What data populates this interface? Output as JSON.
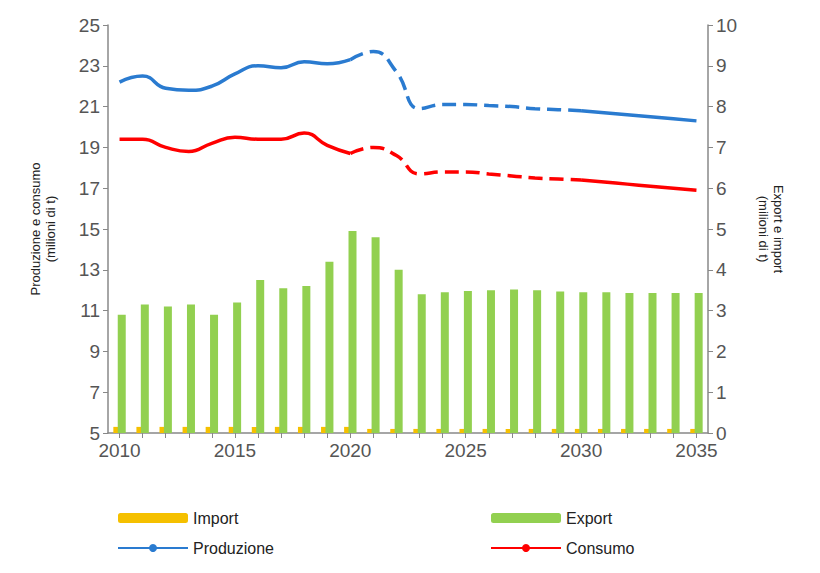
{
  "chart_data": {
    "type": "bar",
    "y_label": "Produzione e consumo\n(milioni di t)",
    "y2_label": "Export e import\n(milioni di t)",
    "categories": [
      2010,
      null,
      null,
      null,
      null,
      2015,
      null,
      null,
      null,
      null,
      2020,
      null,
      null,
      null,
      null,
      2025,
      null,
      null,
      null,
      null,
      2030,
      null,
      null,
      null,
      null,
      2035
    ],
    "ylim": [
      5,
      25
    ],
    "yticks": [
      5,
      7,
      9,
      11,
      13,
      15,
      17,
      19,
      21,
      23,
      25
    ],
    "y2lim": [
      0,
      10
    ],
    "y2ticks": [
      0,
      1,
      2,
      3,
      4,
      5,
      6,
      7,
      8,
      9,
      10
    ],
    "grid": false,
    "legend": "bottom",
    "series": [
      {
        "name": "Import",
        "type": "bar",
        "axis": "y2",
        "color": "#f5c000",
        "values": [
          0.15,
          0.15,
          0.15,
          0.15,
          0.15,
          0.15,
          0.15,
          0.15,
          0.15,
          0.15,
          0.15,
          0.1,
          0.1,
          0.1,
          0.1,
          0.1,
          0.1,
          0.1,
          0.1,
          0.1,
          0.1,
          0.1,
          0.1,
          0.1,
          0.1,
          0.1
        ]
      },
      {
        "name": "Export",
        "type": "bar",
        "axis": "y2",
        "color": "#92d050",
        "values": [
          2.9,
          3.15,
          3.1,
          3.15,
          2.9,
          3.2,
          3.75,
          3.55,
          3.6,
          4.2,
          4.95,
          4.8,
          4.0,
          3.4,
          3.45,
          3.48,
          3.5,
          3.52,
          3.5,
          3.47,
          3.45,
          3.45,
          3.43,
          3.43,
          3.43,
          3.43
        ]
      },
      {
        "name": "Produzione",
        "type": "line",
        "line_style": "solid",
        "color": "#2a7bd0",
        "values": [
          22.2,
          22.5,
          21.9,
          21.8,
          22.0,
          22.6,
          23.0,
          22.9,
          23.2,
          23.1,
          23.3,
          null,
          null,
          null,
          null,
          null,
          null,
          null,
          null,
          null,
          20.8,
          20.7,
          20.6,
          20.5,
          20.4,
          20.3
        ]
      },
      {
        "name": "Produzione",
        "type": "line",
        "line_style": "dashed",
        "color": "#2a7bd0",
        "values": [
          null,
          null,
          null,
          null,
          null,
          null,
          null,
          null,
          null,
          null,
          23.3,
          23.7,
          22.7,
          20.9,
          21.1,
          21.1,
          21.05,
          21.0,
          20.9,
          20.85,
          20.8,
          null,
          null,
          null,
          null,
          null
        ]
      },
      {
        "name": "Consumo",
        "type": "line",
        "line_style": "solid",
        "color": "#ff0000",
        "values": [
          19.4,
          19.4,
          19.0,
          18.8,
          19.2,
          19.5,
          19.4,
          19.4,
          19.7,
          19.1,
          18.7,
          null,
          null,
          null,
          null,
          null,
          null,
          null,
          null,
          null,
          17.4,
          17.3,
          17.2,
          17.1,
          17.0,
          16.9
        ]
      },
      {
        "name": "Consumo",
        "type": "line",
        "line_style": "dashed",
        "color": "#ff0000",
        "values": [
          null,
          null,
          null,
          null,
          null,
          null,
          null,
          null,
          null,
          null,
          18.7,
          19.0,
          18.6,
          17.7,
          17.8,
          17.8,
          17.7,
          17.6,
          17.5,
          17.45,
          17.4,
          null,
          null,
          null,
          null,
          null
        ]
      }
    ]
  }
}
